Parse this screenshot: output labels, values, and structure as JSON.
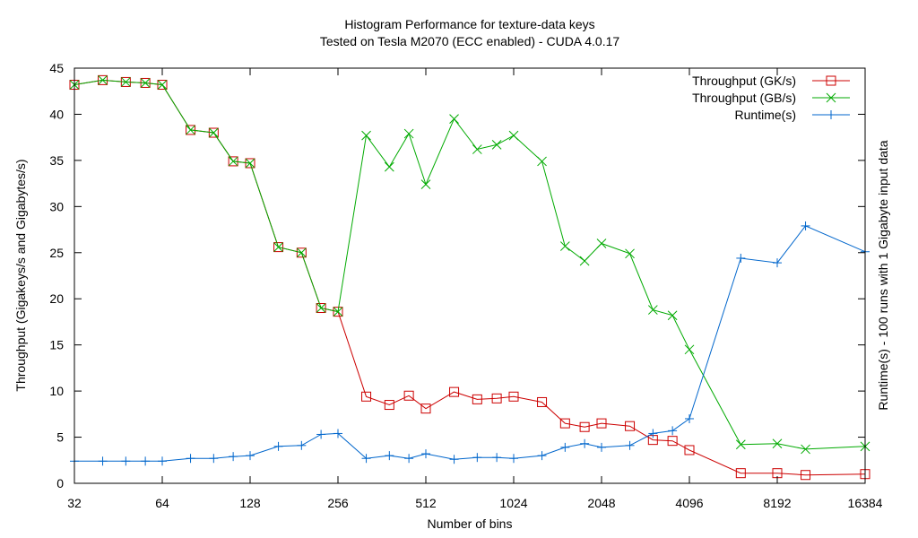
{
  "chart_data": {
    "type": "line",
    "title": "Histogram Performance for texture-data keys",
    "subtitle": "Tested on Tesla M2070 (ECC enabled) - CUDA 4.0.17",
    "xlabel": "Number of bins",
    "ylabel": "Throughput (Gigakeys/s and Gigabytes/s)",
    "y2label": "Runtime(s) - 100 runs with 1 Gigabyte input data",
    "x_scale": "log2",
    "xlim": [
      32,
      16384
    ],
    "ylim": [
      0,
      45
    ],
    "x_ticks": [
      32,
      64,
      128,
      256,
      512,
      1024,
      2048,
      4096,
      8192,
      16384
    ],
    "x_tick_labels": [
      "32",
      "64",
      "128",
      "256",
      "512",
      "1024",
      "2048",
      "4096",
      "8192",
      "16384"
    ],
    "y_ticks": [
      0,
      5,
      10,
      15,
      20,
      25,
      30,
      35,
      40,
      45
    ],
    "y_tick_labels": [
      "0",
      "5",
      "10",
      "15",
      "20",
      "25",
      "30",
      "35",
      "40",
      "45"
    ],
    "legend_position": "top-right",
    "x": [
      32,
      40,
      48,
      56,
      64,
      80,
      96,
      112,
      128,
      160,
      192,
      224,
      256,
      320,
      384,
      448,
      512,
      640,
      768,
      896,
      1024,
      1280,
      1536,
      1792,
      2048,
      2560,
      3072,
      3584,
      4096,
      6144,
      8192,
      10240,
      16384
    ],
    "series": [
      {
        "name": "Throughput (GK/s)",
        "color": "#cc0000",
        "marker": "square",
        "x": [
          32,
          40,
          48,
          56,
          64,
          80,
          96,
          112,
          128,
          160,
          192,
          224,
          256,
          320,
          384,
          448,
          512,
          640,
          768,
          896,
          1024,
          1280,
          1536,
          1792,
          2048,
          2560,
          3072,
          3584,
          4096,
          6144,
          8192,
          10240,
          16384
        ],
        "values": [
          43.2,
          43.7,
          43.5,
          43.4,
          43.2,
          38.3,
          38.0,
          34.9,
          34.7,
          25.6,
          25.0,
          19.0,
          18.6,
          9.4,
          8.5,
          9.5,
          8.1,
          9.9,
          9.1,
          9.2,
          9.4,
          8.8,
          6.5,
          6.1,
          6.5,
          6.2,
          4.7,
          4.6,
          3.6,
          1.1,
          1.1,
          0.9,
          1.0
        ]
      },
      {
        "name": "Throughput (GB/s)",
        "color": "#00aa00",
        "marker": "x",
        "x": [
          32,
          40,
          48,
          56,
          64,
          80,
          96,
          112,
          128,
          160,
          192,
          224,
          256,
          320,
          384,
          448,
          512,
          640,
          768,
          896,
          1024,
          1280,
          1536,
          1792,
          2048,
          2560,
          3072,
          3584,
          4096,
          6144,
          8192,
          10240,
          16384
        ],
        "values": [
          43.2,
          43.7,
          43.5,
          43.4,
          43.2,
          38.3,
          38.0,
          34.9,
          34.7,
          25.6,
          25.0,
          19.0,
          18.6,
          37.7,
          34.3,
          37.9,
          32.4,
          39.5,
          36.2,
          36.7,
          37.7,
          34.9,
          25.7,
          24.1,
          26.0,
          24.9,
          18.8,
          18.2,
          14.5,
          4.2,
          4.3,
          3.7,
          4.0
        ]
      },
      {
        "name": "Runtime(s)",
        "color": "#0066cc",
        "marker": "plus",
        "x": [
          32,
          40,
          48,
          56,
          64,
          80,
          96,
          112,
          128,
          160,
          192,
          224,
          256,
          320,
          384,
          448,
          512,
          640,
          768,
          896,
          1024,
          1280,
          1536,
          1792,
          2048,
          2560,
          3072,
          3584,
          4096,
          6144,
          8192,
          10240,
          16384
        ],
        "values": [
          2.4,
          2.4,
          2.4,
          2.4,
          2.4,
          2.7,
          2.7,
          2.9,
          3.0,
          4.0,
          4.1,
          5.3,
          5.4,
          2.7,
          3.0,
          2.7,
          3.2,
          2.6,
          2.8,
          2.8,
          2.7,
          3.0,
          3.9,
          4.3,
          3.9,
          4.1,
          5.4,
          5.7,
          7.0,
          24.4,
          23.9,
          27.9,
          25.1
        ]
      }
    ]
  }
}
